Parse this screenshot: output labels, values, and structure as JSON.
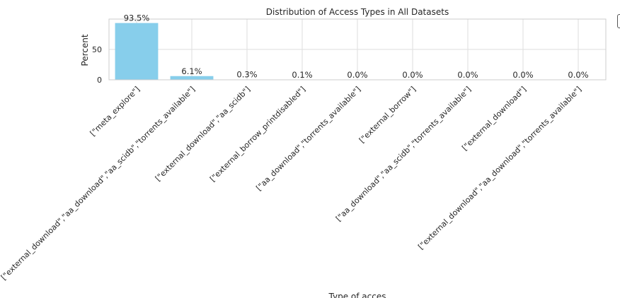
{
  "chart_data": {
    "type": "bar",
    "title": "Distribution of Access Types in All Datasets",
    "xlabel": "Type of acces",
    "ylabel": "Percent",
    "categories": [
      "[\"meta_explore\"]",
      "[\"external_download\",\"aa_download\",\"aa_scidb\",\"torrents_available\"]",
      "[\"external_download\",\"aa_scidb\"]",
      "[\"external_borrow_printdisabled\"]",
      "[\"aa_download\",\"torrents_available\"]",
      "[\"external_borrow\"]",
      "[\"aa_download\",\"aa_scidb\",\"torrents_available\"]",
      "[\"external_download\"]",
      "[\"external_download\",\"aa_download\",\"torrents_available\"]"
    ],
    "values": [
      93.5,
      6.1,
      0.3,
      0.1,
      0.0,
      0.0,
      0.0,
      0.0,
      0.0
    ],
    "value_labels": [
      "93.5%",
      "6.1%",
      "0.3%",
      "0.1%",
      "0.0%",
      "0.0%",
      "0.0%",
      "0.0%",
      "0.0%"
    ],
    "y_ticks": [
      0,
      50
    ],
    "ylim": [
      0,
      100
    ],
    "bar_color": "#87CEEB",
    "grid": true,
    "legend": "none"
  }
}
